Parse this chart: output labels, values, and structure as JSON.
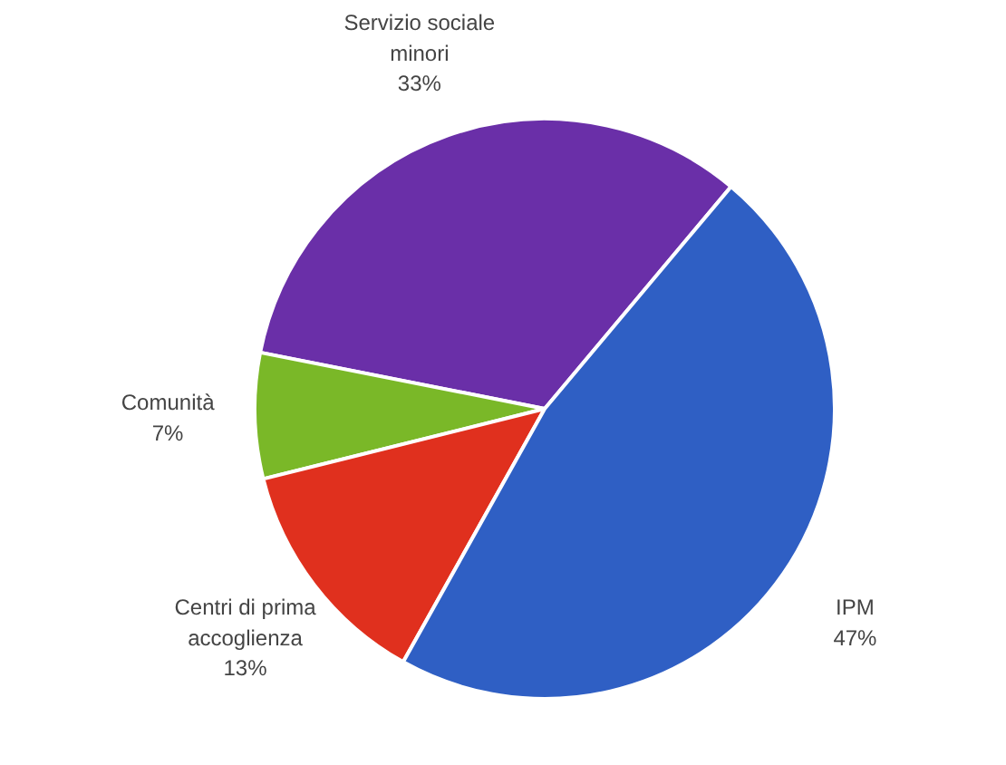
{
  "chart_data": {
    "type": "pie",
    "categories": [
      "Servizio sociale minori",
      "Comunità",
      "Centri di prima accoglienza",
      "IPM"
    ],
    "values": [
      33,
      7,
      13,
      47
    ],
    "value_labels": [
      "33%",
      "7%",
      "13%",
      "47%"
    ],
    "colors": [
      "#6a2fa8",
      "#7ab828",
      "#e0301e",
      "#2f5fc4"
    ]
  }
}
